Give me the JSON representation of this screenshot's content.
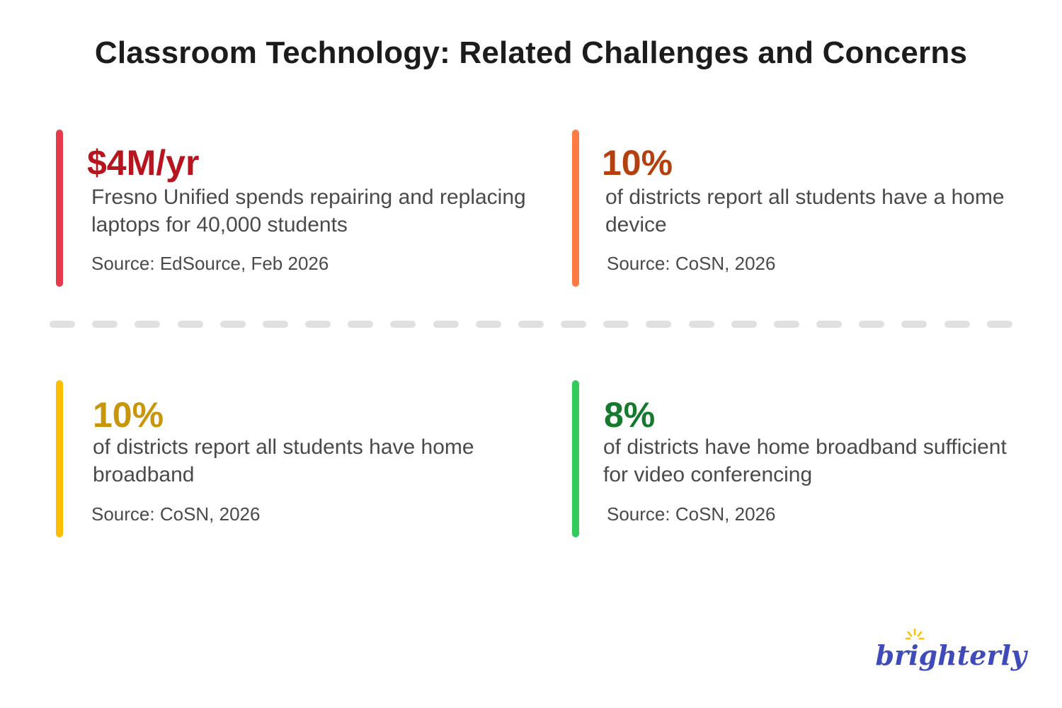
{
  "title": "Classroom Technology: Related Challenges and Concerns",
  "cards": [
    {
      "stat": "$4M/yr",
      "description": "Fresno Unified spends  repairing and replacing laptops for 40,000 students",
      "source": "Source: EdSource, Feb 2026",
      "bar_color": "#e53a4a",
      "stat_color": "#b8141f"
    },
    {
      "stat": "10%",
      "description": "of districts report all students have a home device",
      "source": "Source: CoSN, 2026",
      "bar_color": "#ff7a45",
      "stat_color": "#b5400f"
    },
    {
      "stat": "10%",
      "description": "of districts report all students have home broadband",
      "source": "Source: CoSN, 2026",
      "bar_color": "#ffbf00",
      "stat_color": "#c9960a"
    },
    {
      "stat": "8%",
      "description": "of districts have home broadband sufficient for video conferencing",
      "source": "Source: CoSN, 2026",
      "bar_color": "#33cc5a",
      "stat_color": "#157a2d"
    }
  ],
  "logo": {
    "text": "brighterly",
    "icon": "sun-rays-icon",
    "color": "#3f4bb8",
    "accent": "#ffbf00"
  }
}
